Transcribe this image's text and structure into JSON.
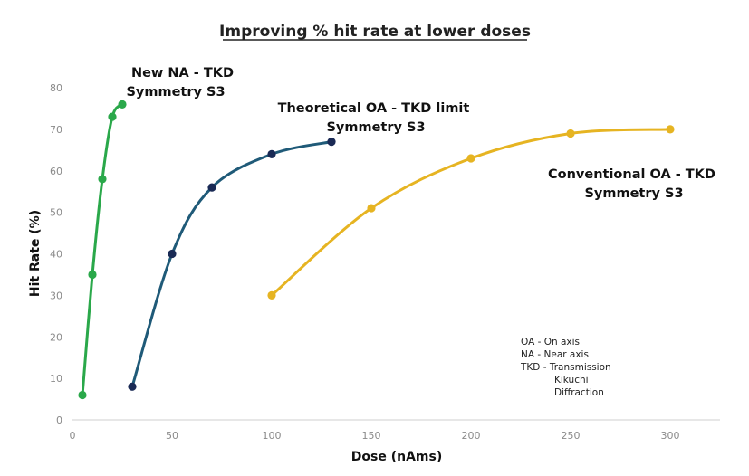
{
  "chart_data": {
    "type": "line",
    "title": "Improving % hit rate at lower doses",
    "xlabel": "Dose (nAms)",
    "ylabel": "Hit Rate (%)",
    "xlim": [
      0,
      325
    ],
    "ylim": [
      0,
      80
    ],
    "xticks": [
      0,
      50,
      100,
      150,
      200,
      250,
      300
    ],
    "yticks": [
      0,
      10,
      20,
      30,
      40,
      50,
      60,
      70,
      80
    ],
    "grid": false,
    "series": [
      {
        "name": "New NA - TKD Symmetry S3",
        "label_lines": [
          "New NA - TKD",
          "Symmetry S3"
        ],
        "color": "#2aa84a",
        "x": [
          5,
          10,
          15,
          20,
          25
        ],
        "y": [
          6,
          35,
          58,
          73,
          76
        ]
      },
      {
        "name": "Theoretical OA - TKD limit Symmetry S3",
        "label_lines": [
          "Theoretical OA - TKD limit",
          "Symmetry S3"
        ],
        "color": "#1f5a78",
        "marker_color": "#1a2a55",
        "x": [
          30,
          50,
          70,
          100,
          130
        ],
        "y": [
          8,
          40,
          56,
          64,
          67
        ]
      },
      {
        "name": "Conventional OA - TKD Symmetry S3",
        "label_lines": [
          "Conventional OA - TKD",
          "Symmetry S3"
        ],
        "color": "#e6b422",
        "x": [
          100,
          150,
          200,
          250,
          300
        ],
        "y": [
          30,
          51,
          63,
          69,
          70
        ]
      }
    ],
    "annotations": [
      "OA   - On axis",
      "NA   - Near axis",
      "TKD - Transmission",
      "Kikuchi",
      "Diffraction"
    ]
  }
}
